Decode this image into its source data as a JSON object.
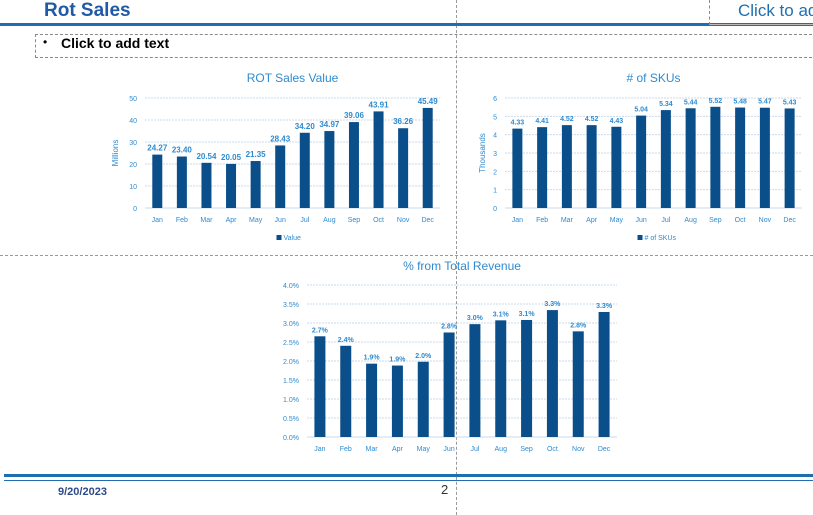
{
  "slide": {
    "title": "Rot Sales",
    "title_right": "Click to add",
    "text_bullet": "•",
    "text_placeholder": "Click to add text",
    "footer_date": "9/20/2023",
    "page_number": "2"
  },
  "colors": {
    "bar": "#0b4f8a",
    "accent": "#1f6fb0",
    "label": "#2e8bd0",
    "grid": "#c9d9ec"
  },
  "chart_data": [
    {
      "type": "bar",
      "title": "ROT Sales Value",
      "ylabel": "Millions",
      "xlabel": "",
      "categories": [
        "Jan",
        "Feb",
        "Mar",
        "Apr",
        "May",
        "Jun",
        "Jul",
        "Aug",
        "Sep",
        "Oct",
        "Nov",
        "Dec"
      ],
      "series": [
        {
          "name": "Value",
          "values": [
            24.27,
            23.4,
            20.54,
            20.05,
            21.35,
            28.43,
            34.2,
            34.97,
            39.06,
            43.91,
            36.26,
            45.49
          ]
        }
      ],
      "value_labels": [
        "24.27",
        "23.40",
        "20.54",
        "20.05",
        "21.35",
        "28.43",
        "34.20",
        "34.97",
        "39.06",
        "43.91",
        "36.26",
        "45.49"
      ],
      "yticks": [
        "0",
        "10",
        "20",
        "30",
        "40",
        "50"
      ],
      "ylim": [
        0,
        50
      ],
      "grid": true,
      "legend": "bottom"
    },
    {
      "type": "bar",
      "title": "# of SKUs",
      "ylabel": "Thousands",
      "xlabel": "",
      "categories": [
        "Jan",
        "Feb",
        "Mar",
        "Apr",
        "May",
        "Jun",
        "Jul",
        "Aug",
        "Sep",
        "Oct",
        "Nov",
        "Dec"
      ],
      "series": [
        {
          "name": "# of SKUs",
          "values": [
            4.33,
            4.41,
            4.52,
            4.52,
            4.43,
            5.04,
            5.34,
            5.44,
            5.52,
            5.48,
            5.47,
            5.43
          ]
        }
      ],
      "value_labels": [
        "4.33",
        "4.41",
        "4.52",
        "4.52",
        "4.43",
        "5.04",
        "5.34",
        "5.44",
        "5.52",
        "5.48",
        "5.47",
        "5.43"
      ],
      "yticks": [
        "0",
        "1",
        "2",
        "3",
        "4",
        "5",
        "6"
      ],
      "ylim": [
        0,
        6
      ],
      "grid": true,
      "legend": "bottom"
    },
    {
      "type": "bar",
      "title": "% from Total Revenue",
      "ylabel": "",
      "xlabel": "",
      "categories": [
        "Jan",
        "Feb",
        "Mar",
        "Apr",
        "May",
        "Jun",
        "Jul",
        "Aug",
        "Sep",
        "Oct",
        "Nov",
        "Dec"
      ],
      "series": [
        {
          "values": [
            2.65,
            2.4,
            1.93,
            1.88,
            1.98,
            2.75,
            2.97,
            3.07,
            3.08,
            3.34,
            2.78,
            3.29
          ]
        }
      ],
      "value_labels": [
        "2.7%",
        "2.4%",
        "1.9%",
        "1.9%",
        "2.0%",
        "2.8%",
        "3.0%",
        "3.1%",
        "3.1%",
        "3.3%",
        "2.8%",
        "3.3%"
      ],
      "yticks": [
        "0.0%",
        "0.5%",
        "1.0%",
        "1.5%",
        "2.0%",
        "2.5%",
        "3.0%",
        "3.5%",
        "4.0%"
      ],
      "ylim": [
        0,
        4.0
      ],
      "grid": true,
      "legend": "none"
    }
  ]
}
